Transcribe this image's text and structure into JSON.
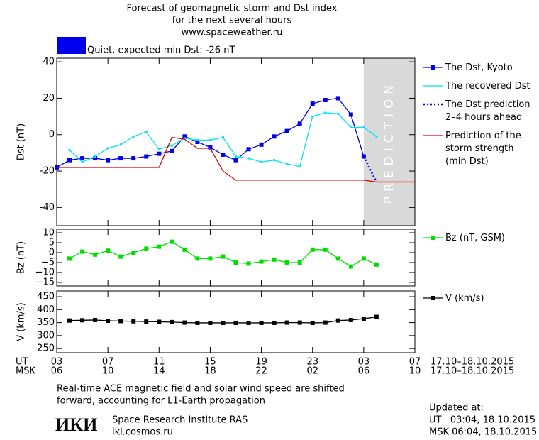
{
  "title_lines": [
    "Forecast of geomagnetic storm and Dst index",
    "for the next several hours",
    "www.spaceweather.ru"
  ],
  "status": {
    "color": "#0000ee",
    "text": "Quiet, expected min Dst: -26 nT"
  },
  "x_row_labels": [
    "UT",
    "MSK"
  ],
  "date_labels": [
    "17.10–18.10.2015",
    "17.10–18.10.2015"
  ],
  "note_lines": [
    "Real-time ACE magnetic field and solar wind speed are shifted",
    "forward, accounting for L1-Earth propagation"
  ],
  "institute": {
    "logo": "ИКИ",
    "name": "Space Research Institute RAS",
    "url": "iki.cosmos.ru"
  },
  "updated": [
    "Updated at:",
    "UT   03:04, 18.10.2015",
    "MSK 06:04, 18.10.2015"
  ],
  "chart_data": [
    {
      "type": "line",
      "y_label": "Dst (nT)",
      "xlim": [
        0,
        28
      ],
      "xticks": [
        0,
        4,
        8,
        12,
        16,
        20,
        24,
        28
      ],
      "ylim": [
        -50,
        42
      ],
      "yticks": [
        -40,
        -20,
        0,
        20,
        40
      ],
      "shaded_region": {
        "x": [
          24,
          28
        ],
        "color": "#d9d9d9",
        "label": "PREDICTION"
      },
      "series": [
        {
          "name": "The Dst, Kyoto",
          "color": "#0000ee",
          "style": "line-square",
          "x": [
            0,
            1,
            2,
            3,
            4,
            5,
            6,
            7,
            8,
            9,
            10,
            11,
            12,
            13,
            14,
            15,
            16,
            17,
            18,
            19,
            20,
            21,
            22,
            23,
            24
          ],
          "values": [
            -18,
            -14,
            -13,
            -13,
            -14,
            -13,
            -13,
            -12,
            -10.5,
            -9,
            -1,
            -4,
            -7,
            -11,
            -14,
            -8,
            -5.5,
            -1,
            2,
            6,
            17,
            19,
            20,
            11,
            -12
          ]
        },
        {
          "name": "The recovered Dst",
          "color": "#00e5ee",
          "style": "line-dot",
          "x": [
            1,
            2,
            3,
            4,
            5,
            6,
            7,
            8,
            9,
            10,
            11,
            12,
            13,
            14,
            15,
            16,
            17,
            18,
            19,
            20,
            21,
            22,
            23,
            24,
            25
          ],
          "values": [
            -8.5,
            -15,
            -12,
            -7.5,
            -5.5,
            -1,
            1.5,
            -8,
            -6,
            -2,
            -3,
            -3,
            -1.5,
            -12,
            -13,
            -15,
            -14,
            -16,
            -17.5,
            10,
            12,
            11.5,
            4,
            4,
            -1
          ]
        },
        {
          "name": "The Dst prediction\n2–4 hours ahead",
          "color": "#0000cc",
          "style": "dotted",
          "x": [
            24,
            25
          ],
          "values": [
            -12,
            -26
          ]
        },
        {
          "name": "Prediction of the\nstorm strength\n(min Dst)",
          "color": "#dd0000",
          "style": "line",
          "x": [
            0,
            8,
            9,
            10,
            11,
            12,
            13,
            14,
            24,
            25,
            28
          ],
          "values": [
            -18,
            -18,
            -1.5,
            -2.5,
            -7.5,
            -7.5,
            -20,
            -25,
            -25,
            -26,
            -26
          ]
        }
      ]
    },
    {
      "type": "line",
      "y_label": "Bz (nT)",
      "xlim": [
        0,
        28
      ],
      "xticks": [
        0,
        4,
        8,
        12,
        16,
        20,
        24,
        28
      ],
      "ylim": [
        -16.8,
        11.8
      ],
      "yticks": [
        10,
        5,
        0,
        {
          "value": -5,
          "label": "−5"
        },
        {
          "value": -10,
          "label": "−10"
        },
        {
          "value": -15,
          "label": "−15"
        }
      ],
      "series": [
        {
          "name": "Bz (nT, GSM)",
          "color": "#00dd00",
          "style": "line-square",
          "x": [
            1,
            2,
            3,
            4,
            5,
            6,
            7,
            8,
            9,
            10,
            11,
            12,
            13,
            14,
            15,
            16,
            17,
            18,
            19,
            20,
            21,
            22,
            23,
            24,
            25
          ],
          "values": [
            -3,
            0.5,
            -1,
            1,
            -2,
            0,
            2,
            3,
            5.5,
            1.5,
            -3,
            -3,
            -2,
            -5,
            -5.5,
            -4.5,
            -3.5,
            -5,
            -5,
            1.5,
            1.5,
            -3,
            -7,
            -3,
            -6
          ]
        }
      ]
    },
    {
      "type": "line",
      "y_label": "V (km/s)",
      "xlim": [
        0,
        28
      ],
      "xticks": [
        {
          "value": 0,
          "label": "03"
        },
        {
          "value": 4,
          "label": "07"
        },
        {
          "value": 8,
          "label": "11"
        },
        {
          "value": 12,
          "label": "15"
        },
        {
          "value": 16,
          "label": "19"
        },
        {
          "value": 20,
          "label": "23"
        },
        {
          "value": 24,
          "label": "03"
        },
        {
          "value": 28,
          "label": "07"
        }
      ],
      "xticks_msk": [
        "06",
        "10",
        "14",
        "18",
        "22",
        "02",
        "06",
        "10"
      ],
      "ylim": [
        234,
        472
      ],
      "yticks": [
        250,
        300,
        350,
        400,
        450
      ],
      "series": [
        {
          "name": "V (km/s)",
          "color": "#000000",
          "style": "line-square",
          "x": [
            1,
            2,
            3,
            4,
            5,
            6,
            7,
            8,
            9,
            10,
            11,
            12,
            13,
            14,
            15,
            16,
            17,
            18,
            19,
            20,
            21,
            22,
            23,
            24,
            25
          ],
          "values": [
            358,
            359,
            360,
            357,
            356,
            355,
            354,
            353,
            352,
            350,
            349,
            349,
            349,
            349,
            349,
            349,
            349,
            350,
            350,
            349,
            350,
            358,
            360,
            365,
            372
          ]
        }
      ]
    }
  ]
}
